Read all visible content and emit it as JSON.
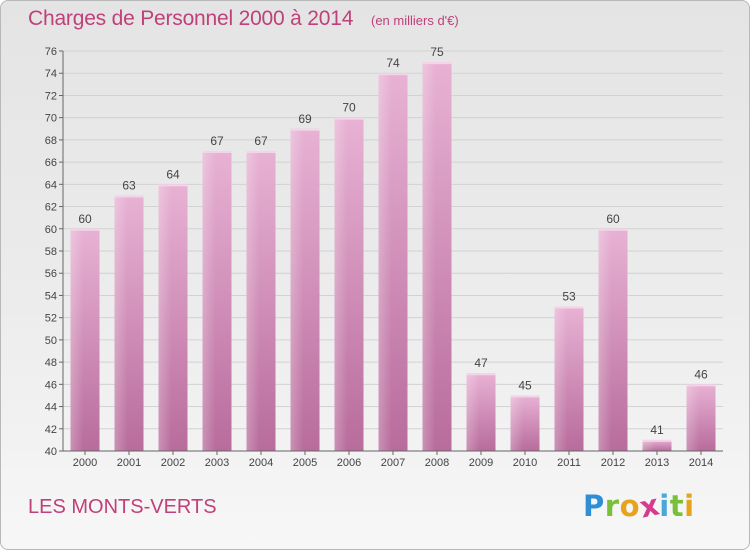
{
  "header": {
    "title": "Charges de Personnel 2000 à 2014",
    "subtitle": "(en milliers d'€)"
  },
  "footer": {
    "commune": "LES MONTS-VERTS",
    "logo": {
      "letters": [
        "P",
        "r",
        "o",
        "x",
        "i",
        "t",
        "i"
      ],
      "colors": [
        "#2f8ed4",
        "#7abf3a",
        "#e8a31c",
        "#d63c8d",
        "#4aa7d9",
        "#7abf3a",
        "#e8a31c"
      ]
    }
  },
  "colors": {
    "bar_light": "#e8b2d4",
    "bar_dark": "#b86c9c",
    "text_accent": "#c0407a"
  },
  "chart_data": {
    "type": "bar",
    "categories": [
      "2000",
      "2001",
      "2002",
      "2003",
      "2004",
      "2005",
      "2006",
      "2007",
      "2008",
      "2009",
      "2010",
      "2011",
      "2012",
      "2013",
      "2014"
    ],
    "values": [
      60,
      63,
      64,
      67,
      67,
      69,
      70,
      74,
      75,
      47,
      45,
      53,
      60,
      41,
      46
    ],
    "title": "Charges de Personnel 2000 à 2014",
    "ylim": [
      40,
      76
    ],
    "yticks": [
      40,
      42,
      44,
      46,
      48,
      50,
      52,
      54,
      56,
      58,
      60,
      62,
      64,
      66,
      68,
      70,
      72,
      74,
      76
    ],
    "grid": true,
    "data_labels": true
  }
}
